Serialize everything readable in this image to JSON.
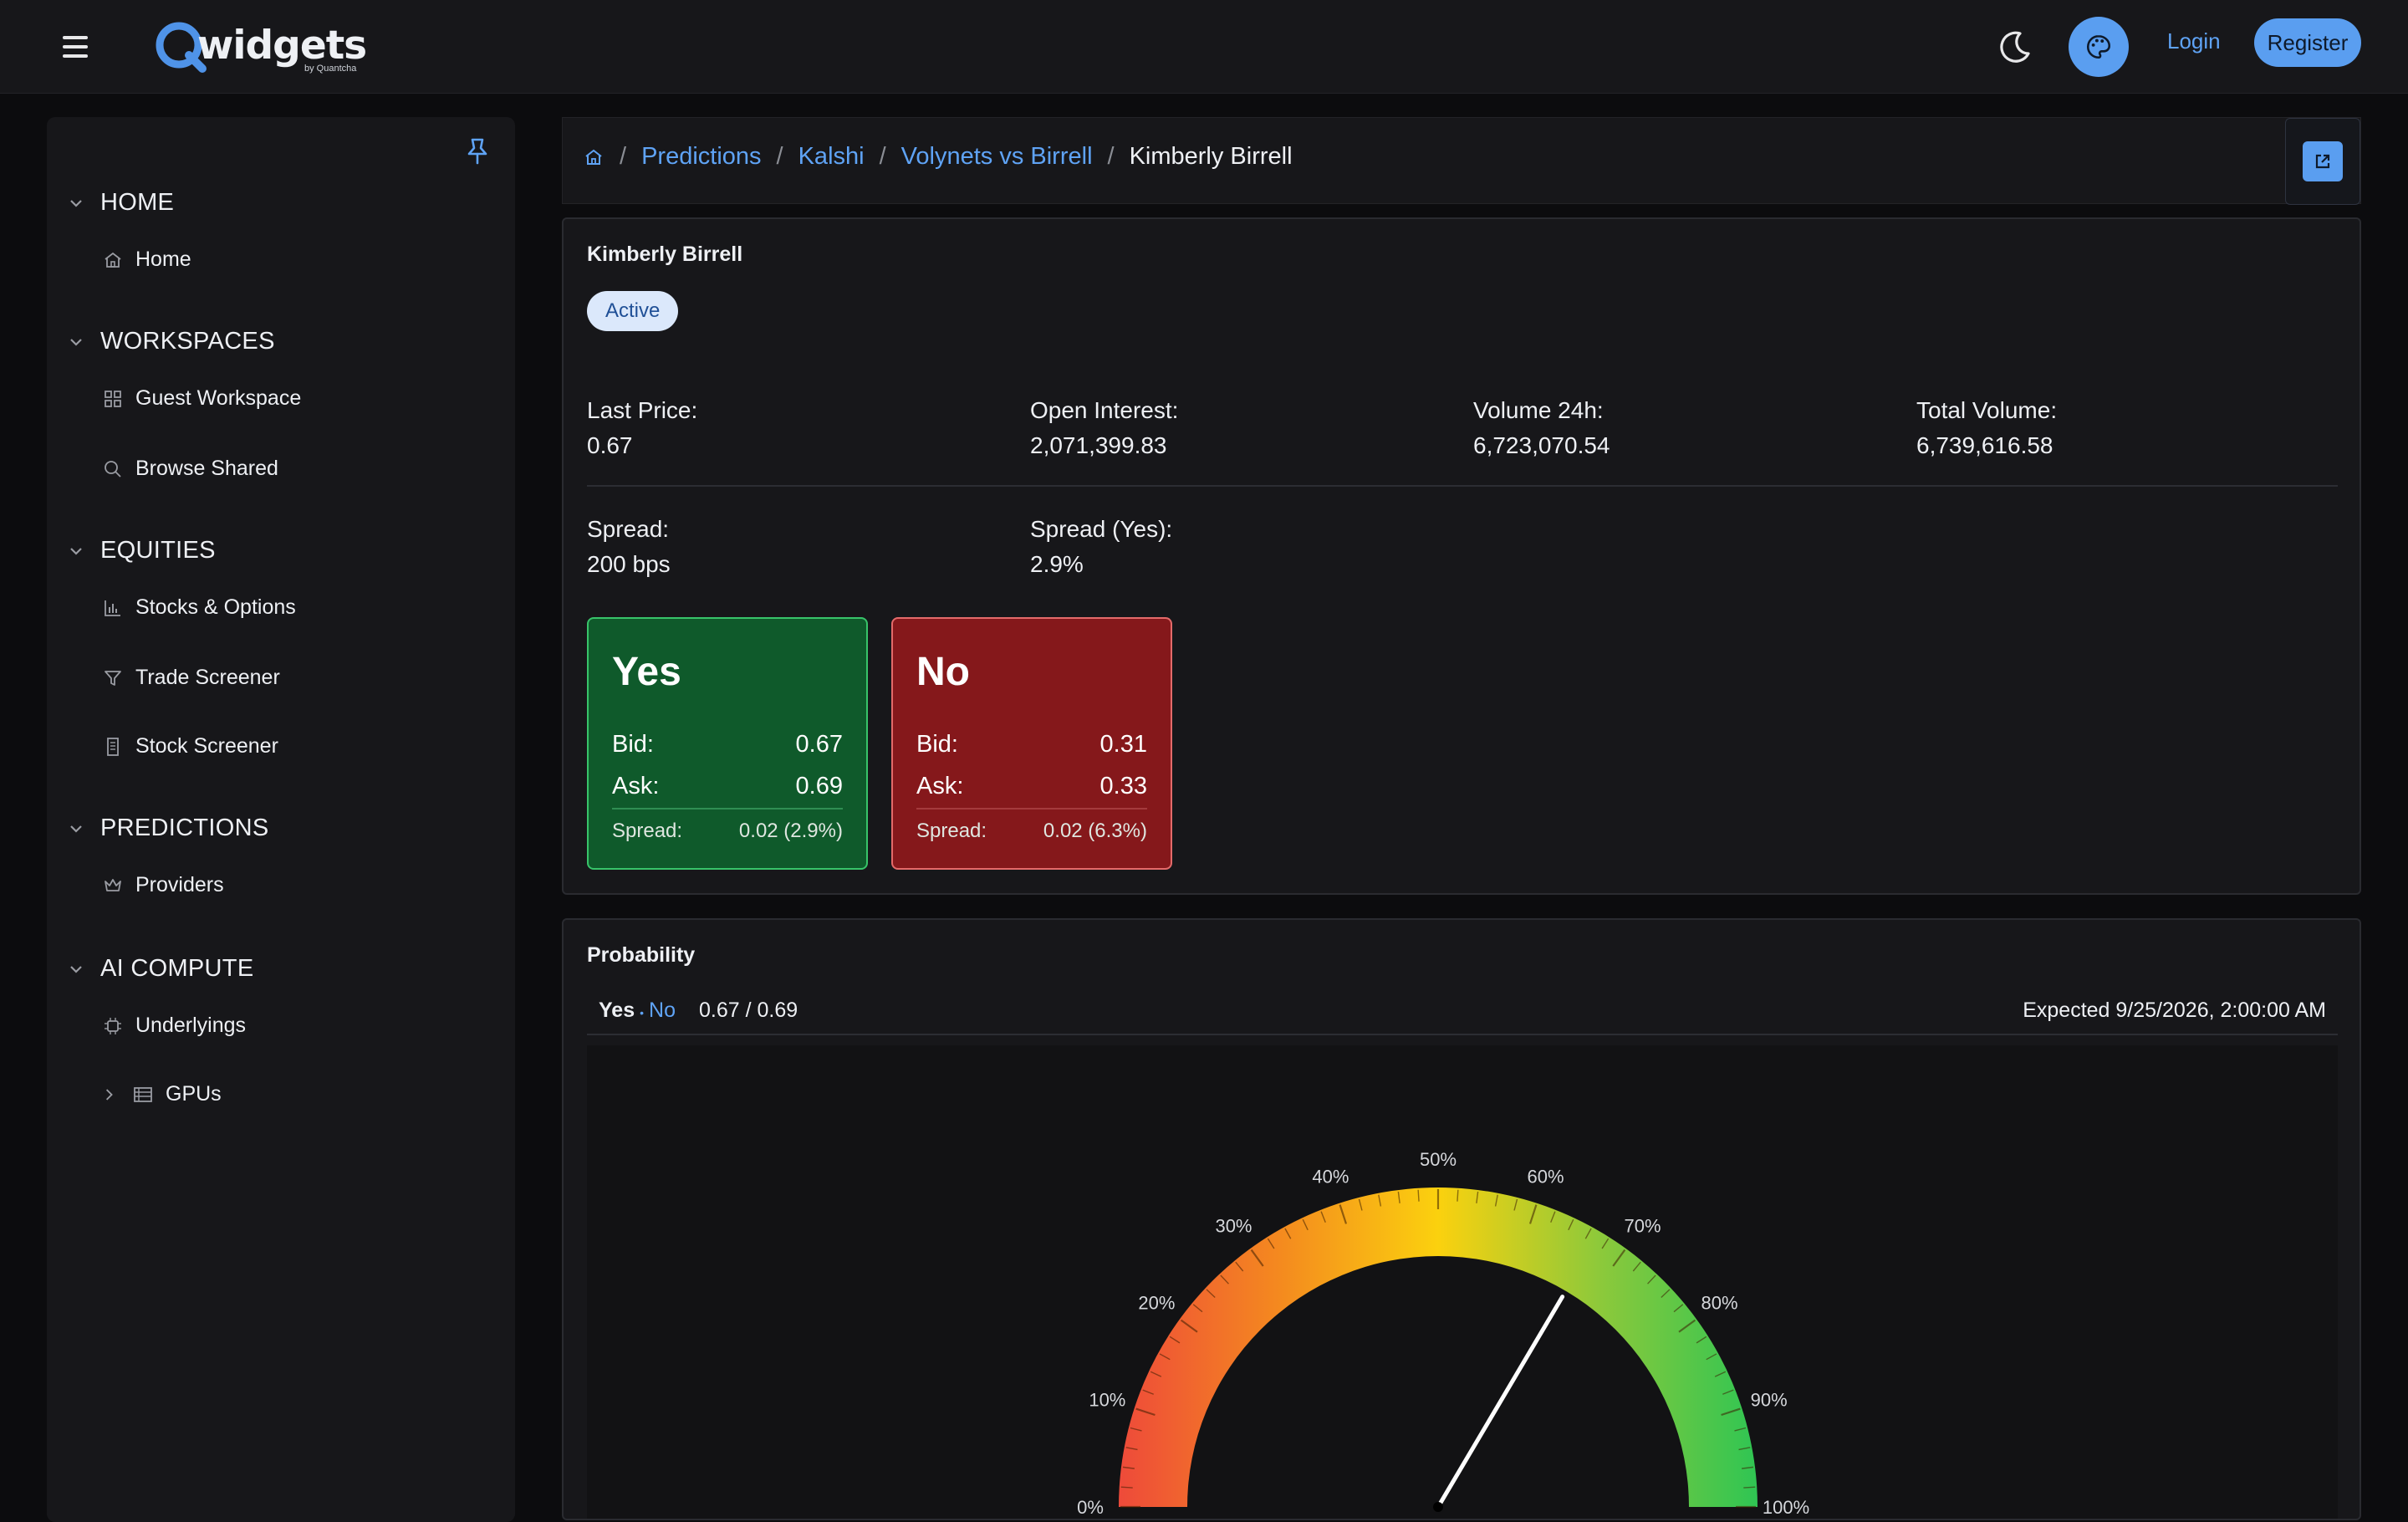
{
  "header": {
    "logo_word": "widgets",
    "logo_sub": "by Quantcha",
    "login_label": "Login",
    "register_label": "Register"
  },
  "sidebar": {
    "sections": [
      {
        "label": "HOME",
        "items": [
          {
            "label": "Home",
            "icon": "home-icon"
          }
        ]
      },
      {
        "label": "WORKSPACES",
        "items": [
          {
            "label": "Guest Workspace",
            "icon": "grid-icon"
          },
          {
            "label": "Browse Shared",
            "icon": "search-icon"
          }
        ]
      },
      {
        "label": "EQUITIES",
        "items": [
          {
            "label": "Stocks & Options",
            "icon": "bar-chart-icon"
          },
          {
            "label": "Trade Screener",
            "icon": "filter-icon"
          },
          {
            "label": "Stock Screener",
            "icon": "building-icon"
          }
        ]
      },
      {
        "label": "PREDICTIONS",
        "items": [
          {
            "label": "Providers",
            "icon": "crown-icon"
          }
        ]
      },
      {
        "label": "AI COMPUTE",
        "items": [
          {
            "label": "Underlyings",
            "icon": "chip-icon"
          },
          {
            "label": "GPUs",
            "icon": "server-icon"
          }
        ]
      }
    ]
  },
  "breadcrumb": {
    "items": [
      "Predictions",
      "Kalshi",
      "Volynets vs Birrell"
    ],
    "current": "Kimberly Birrell"
  },
  "market": {
    "title": "Kimberly Birrell",
    "status": "Active",
    "stats": [
      {
        "label": "Last Price:",
        "value": "0.67"
      },
      {
        "label": "Open Interest:",
        "value": "2,071,399.83"
      },
      {
        "label": "Volume 24h:",
        "value": "6,723,070.54"
      },
      {
        "label": "Total Volume:",
        "value": "6,739,616.58"
      },
      {
        "label": "Spread:",
        "value": "200 bps"
      },
      {
        "label": "Spread (Yes):",
        "value": "2.9%"
      }
    ],
    "yes": {
      "title": "Yes",
      "bid_label": "Bid:",
      "bid": "0.67",
      "ask_label": "Ask:",
      "ask": "0.69",
      "spread_label": "Spread:",
      "spread": "0.02 (2.9%)",
      "color": "#0f5a2b"
    },
    "no": {
      "title": "No",
      "bid_label": "Bid:",
      "bid": "0.31",
      "ask_label": "Ask:",
      "ask": "0.33",
      "spread_label": "Spread:",
      "spread": "0.02 (6.3%)",
      "color": "#85181b"
    }
  },
  "probability": {
    "title": "Probability",
    "yes_label": "Yes",
    "no_label": "No",
    "price_text": "0.67 / 0.69",
    "expected": "Expected 9/25/2026, 2:00:00 AM",
    "gauge": {
      "value_percent": 67,
      "tick_labels": [
        "0%",
        "10%",
        "20%",
        "30%",
        "40%",
        "50%",
        "60%",
        "70%",
        "80%",
        "90%",
        "100%"
      ]
    }
  },
  "colors": {
    "accent": "#5a9ef0",
    "link": "#5fa3f5",
    "yes_border": "#38c46a",
    "no_border": "#e46a6a"
  }
}
